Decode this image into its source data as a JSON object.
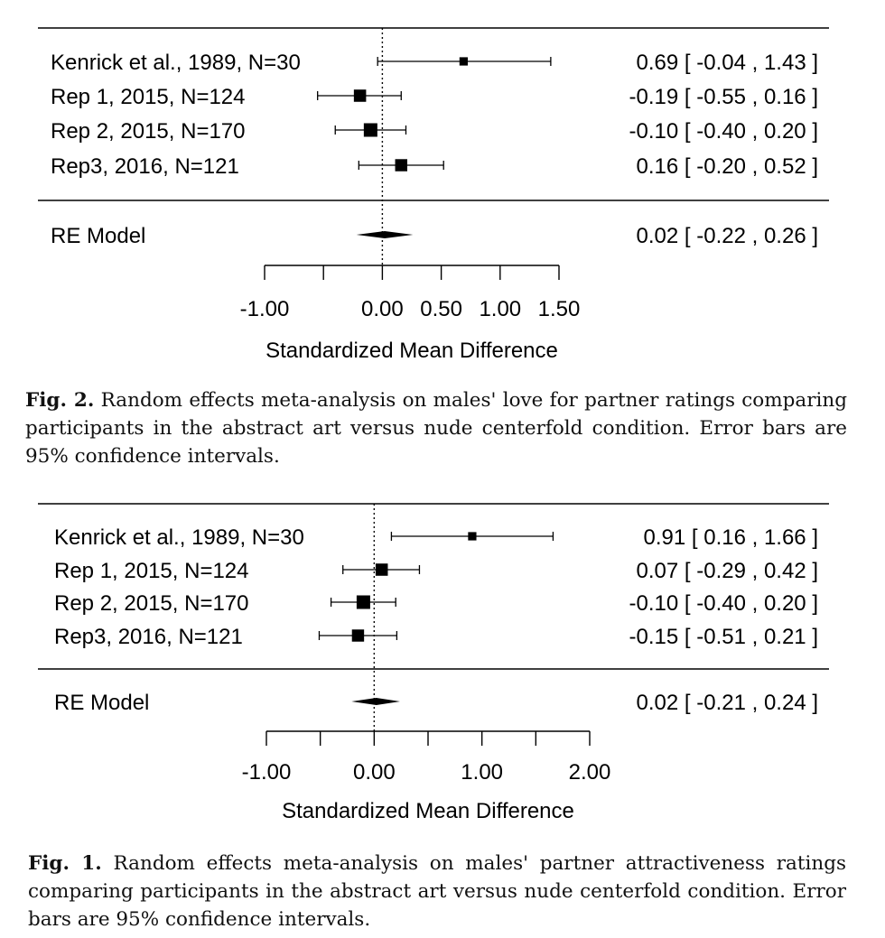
{
  "figures": [
    {
      "id": "fig2",
      "caption_label": "Fig. 2.",
      "caption_text": "Random effects meta-analysis on males' love for partner ratings comparing participants in the abstract art versus nude centerfold condition. Error bars are 95% confidence intervals."
    },
    {
      "id": "fig1",
      "caption_label": "Fig. 1.",
      "caption_text": "Random effects meta-analysis on males' partner attractiveness ratings comparing participants in the abstract art versus nude centerfold condition. Error bars are 95% confidence intervals."
    }
  ],
  "chart_data": [
    {
      "type": "forest",
      "xlabel": "Standardized Mean Difference",
      "xticks": [
        -1.0,
        -0.5,
        0.0,
        0.5,
        1.0,
        1.5
      ],
      "xtick_labels": [
        "-1.00",
        "",
        "0.00",
        "0.50",
        "1.00",
        "1.50"
      ],
      "xlim": [
        -1.0,
        1.5
      ],
      "reference_line": 0,
      "studies": [
        {
          "label": "Kenrick et al., 1989, N=30",
          "estimate": 0.69,
          "lower": -0.04,
          "upper": 1.43,
          "text": "0.69 [ -0.04 , 1.43 ]",
          "weight": 30
        },
        {
          "label": "Rep 1, 2015, N=124",
          "estimate": -0.19,
          "lower": -0.55,
          "upper": 0.16,
          "text": "-0.19 [ -0.55 , 0.16 ]",
          "weight": 124
        },
        {
          "label": "Rep 2, 2015, N=170",
          "estimate": -0.1,
          "lower": -0.4,
          "upper": 0.2,
          "text": "-0.10 [ -0.40 , 0.20 ]",
          "weight": 170
        },
        {
          "label": "Rep3, 2016, N=121",
          "estimate": 0.16,
          "lower": -0.2,
          "upper": 0.52,
          "text": "0.16 [ -0.20 , 0.52 ]",
          "weight": 121
        }
      ],
      "summary": {
        "label": "RE Model",
        "estimate": 0.02,
        "lower": -0.22,
        "upper": 0.26,
        "text": "0.02 [ -0.22 , 0.26 ]"
      }
    },
    {
      "type": "forest",
      "xlabel": "Standardized Mean Difference",
      "xticks": [
        -1.0,
        -0.5,
        0.0,
        0.5,
        1.0,
        1.5,
        2.0
      ],
      "xtick_labels": [
        "-1.00",
        "",
        "0.00",
        "",
        "1.00",
        "",
        "2.00"
      ],
      "xlim": [
        -1.0,
        2.0
      ],
      "reference_line": 0,
      "studies": [
        {
          "label": "Kenrick et al., 1989, N=30",
          "estimate": 0.91,
          "lower": 0.16,
          "upper": 1.66,
          "text": "0.91 [ 0.16 , 1.66 ]",
          "weight": 30
        },
        {
          "label": "Rep 1, 2015, N=124",
          "estimate": 0.07,
          "lower": -0.29,
          "upper": 0.42,
          "text": "0.07 [ -0.29 , 0.42 ]",
          "weight": 124
        },
        {
          "label": "Rep 2, 2015, N=170",
          "estimate": -0.1,
          "lower": -0.4,
          "upper": 0.2,
          "text": "-0.10 [ -0.40 , 0.20 ]",
          "weight": 170
        },
        {
          "label": "Rep3, 2016, N=121",
          "estimate": -0.15,
          "lower": -0.51,
          "upper": 0.21,
          "text": "-0.15 [ -0.51 , 0.21 ]",
          "weight": 121
        }
      ],
      "summary": {
        "label": "RE Model",
        "estimate": 0.02,
        "lower": -0.21,
        "upper": 0.24,
        "text": "0.02 [ -0.21 , 0.24 ]"
      }
    }
  ]
}
